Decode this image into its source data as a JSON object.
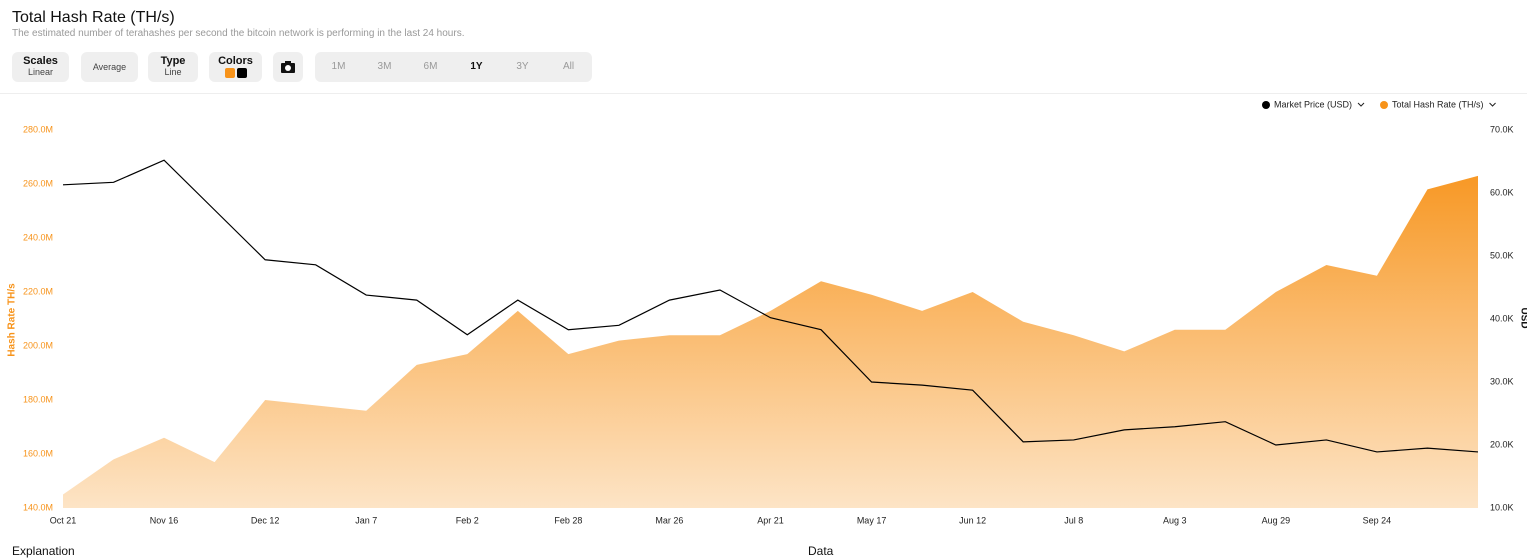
{
  "header": {
    "title": "Total Hash Rate (TH/s)",
    "subtitle": "The estimated number of terahashes per second the bitcoin network is performing in the last 24 hours."
  },
  "controls": {
    "scales": {
      "label": "Scales",
      "value": "Linear"
    },
    "average": "Average",
    "type": {
      "label": "Type",
      "value": "Line"
    },
    "colors": "Colors",
    "ranges": [
      "1M",
      "3M",
      "6M",
      "1Y",
      "3Y",
      "All"
    ],
    "active_range": "1Y"
  },
  "chart_data": {
    "type": "area",
    "ylabel": "Hash Rate TH/s",
    "y2label": "USD",
    "categories": [
      "Oct 21",
      null,
      "Nov 16",
      null,
      "Dec 12",
      null,
      "Jan 7",
      null,
      "Feb 2",
      null,
      "Feb 28",
      null,
      "Mar 26",
      null,
      "Apr 21",
      null,
      "May 17",
      null,
      "Jun 12",
      null,
      "Jul 8",
      null,
      "Aug 3",
      null,
      "Aug 29",
      null,
      "Sep 24",
      null,
      null
    ],
    "series": [
      {
        "name": "Market Price (USD)",
        "color": "#000000",
        "axis": "y2",
        "kind": "line",
        "values": [
          61300,
          61700,
          65200,
          57300,
          49400,
          48600,
          43800,
          43000,
          37500,
          43000,
          38300,
          39000,
          43000,
          44600,
          40200,
          38300,
          30000,
          29500,
          28700,
          20500,
          20800,
          22400,
          22900,
          23700,
          20000,
          20800,
          18900,
          19500,
          18900
        ]
      },
      {
        "name": "Total Hash Rate (TH/s)",
        "color": "#f7931a",
        "kind": "area",
        "values": [
          145000000,
          158000000,
          166000000,
          157000000,
          180000000,
          178000000,
          176000000,
          193000000,
          197000000,
          213000000,
          197000000,
          202000000,
          204000000,
          204000000,
          213000000,
          224000000,
          219000000,
          213000000,
          220000000,
          209000000,
          204000000,
          198000000,
          206000000,
          206000000,
          220000000,
          230000000,
          226000000,
          258000000,
          263000000
        ]
      }
    ],
    "ylim": [
      140000000,
      280000000
    ],
    "yticks": [
      {
        "value": 140000000,
        "label": "140.0M"
      },
      {
        "value": 160000000,
        "label": "160.0M"
      },
      {
        "value": 180000000,
        "label": "180.0M"
      },
      {
        "value": 200000000,
        "label": "200.0M"
      },
      {
        "value": 220000000,
        "label": "220.0M"
      },
      {
        "value": 240000000,
        "label": "240.0M"
      },
      {
        "value": 260000000,
        "label": "260.0M"
      },
      {
        "value": 280000000,
        "label": "280.0M"
      }
    ],
    "y2lim": [
      10000,
      70000
    ],
    "y2ticks": [
      {
        "value": 10000,
        "label": "10.0K"
      },
      {
        "value": 20000,
        "label": "20.0K"
      },
      {
        "value": 30000,
        "label": "30.0K"
      },
      {
        "value": 40000,
        "label": "40.0K"
      },
      {
        "value": 50000,
        "label": "50.0K"
      },
      {
        "value": 60000,
        "label": "60.0K"
      },
      {
        "value": 70000,
        "label": "70.0K"
      }
    ],
    "legend": "top-right",
    "grid": false
  },
  "footer": {
    "left": "Explanation",
    "right": "Data"
  }
}
